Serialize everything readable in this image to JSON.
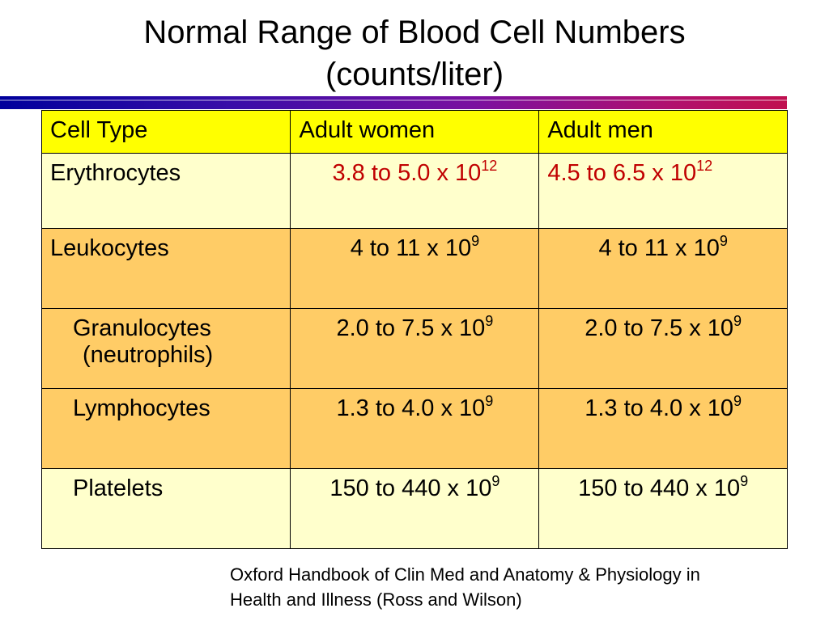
{
  "title": {
    "line1": "Normal Range of Blood Cell Numbers",
    "line2": "(counts/liter)"
  },
  "colors": {
    "header_bg": "#ffff00",
    "light_row_bg": "#ffffcc",
    "orange_row_bg": "#ffcc66",
    "red_text": "#c00000"
  },
  "table": {
    "headers": [
      "Cell Type",
      "Adult women",
      "Adult men"
    ],
    "rows": [
      {
        "cell": "Erythrocytes",
        "women": "3.8 to 5.0 x 10",
        "women_exp": "12",
        "men": "4.5 to 6.5 x 10",
        "men_exp": "12"
      },
      {
        "cell": "Leukocytes",
        "women": "4 to 11 x 10",
        "women_exp": "9",
        "men": "4 to 11 x 10",
        "men_exp": "9"
      },
      {
        "cell": "Granulocytes",
        "cell_sub": "(neutrophils)",
        "women": "2.0 to 7.5 x 10",
        "women_exp": "9",
        "men": "2.0 to 7.5 x 10",
        "men_exp": "9"
      },
      {
        "cell": "Lymphocytes",
        "women": "1.3 to 4.0 x 10",
        "women_exp": "9",
        "men": "1.3 to 4.0 x 10",
        "men_exp": "9"
      },
      {
        "cell": "Platelets",
        "women": "150 to 440 x 10",
        "women_exp": "9",
        "men": "150 to 440 x 10",
        "men_exp": "9"
      }
    ]
  },
  "citation": {
    "line1": "Oxford Handbook of Clin Med and Anatomy & Physiology in",
    "line2": "Health and Illness (Ross and Wilson)"
  }
}
